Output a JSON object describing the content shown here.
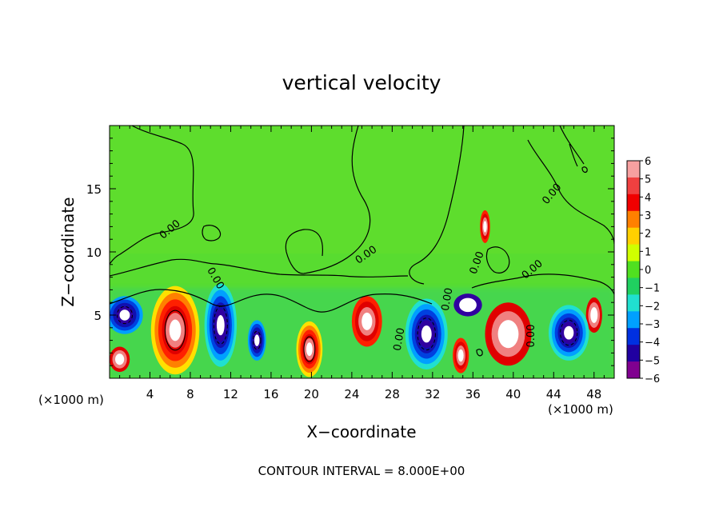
{
  "chart_data": {
    "type": "heatmap",
    "title": "vertical velocity",
    "xlabel": "X−coordinate",
    "ylabel": "Z−coordinate",
    "x_unit_left": "(×1000 m)",
    "x_unit_right": "(×1000 m)",
    "footer": "CONTOUR INTERVAL = 8.000E+00",
    "xlim": [
      0,
      50
    ],
    "ylim": [
      0,
      20
    ],
    "x_ticks": [
      "4",
      "8",
      "12",
      "16",
      "20",
      "24",
      "28",
      "32",
      "36",
      "40",
      "44",
      "48"
    ],
    "y_ticks": [
      "5",
      "10",
      "15"
    ],
    "x_tick_values": [
      4,
      8,
      12,
      16,
      20,
      24,
      28,
      32,
      36,
      40,
      44,
      48
    ],
    "y_tick_values": [
      5,
      10,
      15
    ],
    "contour_labels": [
      "0.00",
      "0.00",
      "0.00",
      "0.00",
      "0.00",
      "0.00",
      "0.00",
      "0.00",
      "0.00"
    ],
    "colorbar": {
      "labels": [
        "6",
        "5",
        "4",
        "3",
        "2",
        "1",
        "0",
        "−1",
        "−2",
        "−3",
        "−4",
        "−5",
        "−6"
      ],
      "values": [
        6,
        5,
        4,
        3,
        2,
        1,
        0,
        -1,
        -2,
        -3,
        -4,
        -5,
        -6
      ],
      "colors": [
        "#f7a0a0",
        "#f04040",
        "#f00000",
        "#ff8000",
        "#ffd000",
        "#d0ff00",
        "#50e020",
        "#20d060",
        "#20e0d0",
        "#00a0ff",
        "#0030e0",
        "#2000a0",
        "#800090"
      ]
    },
    "features": [
      {
        "kind": "updraft",
        "x": 6.5,
        "z": 3.8,
        "rx": 2.4,
        "rz": 3.5,
        "strength": 6
      },
      {
        "kind": "updraft",
        "x": 19.8,
        "z": 2.3,
        "rx": 1.3,
        "rz": 2.2,
        "strength": 6
      },
      {
        "kind": "updraft",
        "x": 25.5,
        "z": 4.5,
        "rx": 1.5,
        "rz": 2.0,
        "strength": 4
      },
      {
        "kind": "updraft",
        "x": 37.2,
        "z": 12.0,
        "rx": 0.5,
        "rz": 1.3,
        "strength": 4
      },
      {
        "kind": "updraft",
        "x": 39.5,
        "z": 3.5,
        "rx": 2.3,
        "rz": 2.5,
        "strength": 3
      },
      {
        "kind": "updraft",
        "x": 34.8,
        "z": 1.8,
        "rx": 0.8,
        "rz": 1.4,
        "strength": 4
      },
      {
        "kind": "updraft",
        "x": 1.0,
        "z": 1.5,
        "rx": 1.0,
        "rz": 1.0,
        "strength": 3
      },
      {
        "kind": "updraft",
        "x": 48.0,
        "z": 5.0,
        "rx": 0.8,
        "rz": 1.4,
        "strength": 3
      },
      {
        "kind": "downdraft",
        "x": 11.0,
        "z": 4.2,
        "rx": 1.6,
        "rz": 3.3,
        "strength": -6
      },
      {
        "kind": "downdraft",
        "x": 1.5,
        "z": 5.0,
        "rx": 1.8,
        "rz": 1.5,
        "strength": -5
      },
      {
        "kind": "downdraft",
        "x": 14.6,
        "z": 3.0,
        "rx": 0.9,
        "rz": 1.6,
        "strength": -5
      },
      {
        "kind": "downdraft",
        "x": 31.4,
        "z": 3.5,
        "rx": 2.1,
        "rz": 2.8,
        "strength": -6
      },
      {
        "kind": "downdraft",
        "x": 45.5,
        "z": 3.6,
        "rx": 2.0,
        "rz": 2.2,
        "strength": -6
      },
      {
        "kind": "downdraft",
        "x": 35.5,
        "z": 5.8,
        "rx": 1.4,
        "rz": 0.9,
        "strength": -2
      }
    ]
  }
}
